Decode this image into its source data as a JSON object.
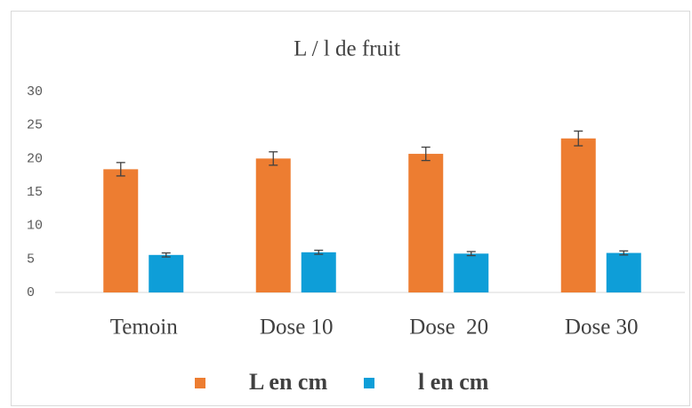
{
  "chart_data": {
    "type": "bar",
    "title": "L / l de fruit",
    "categories": [
      "Temoin",
      "Dose 10",
      "Dose  20",
      "Dose 30"
    ],
    "series": [
      {
        "name": "L en cm",
        "color": "#ed7d31",
        "values": [
          18.4,
          20,
          20.7,
          23
        ],
        "errors": [
          1,
          1,
          1,
          1.1
        ]
      },
      {
        "name": "l en cm",
        "color": "#0e9ed8",
        "values": [
          5.6,
          6,
          5.8,
          5.9
        ],
        "errors": [
          0.3,
          0.3,
          0.3,
          0.3
        ]
      }
    ],
    "ylim": [
      0,
      30
    ],
    "yticks": [
      0,
      5,
      10,
      15,
      20,
      25,
      30
    ],
    "grid": false,
    "legend": "bottom"
  }
}
